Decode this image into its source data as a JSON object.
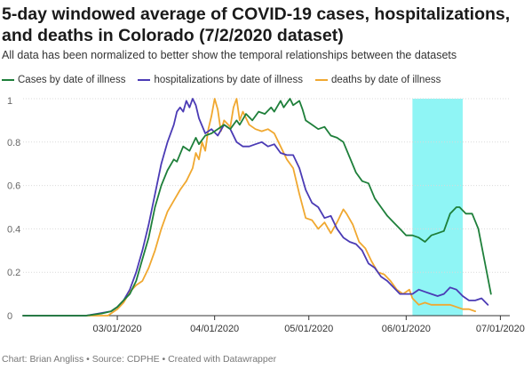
{
  "title": "5-day windowed average of COVID-19 cases, hospitalizations, and deaths in Colorado (7/2/2020 dataset)",
  "subtitle": "All data has been normalized to better show the temporal relationships between the datasets",
  "footer": "Chart: Brian Angliss • Source: CDPHE • Created with Datawrapper",
  "chart_data": {
    "type": "line",
    "title": "5-day windowed average of COVID-19 cases, hospitalizations, and deaths in Colorado (7/2/2020 dataset)",
    "xlim": [
      "2020-01-31",
      "2020-07-04"
    ],
    "ylim": [
      0,
      1
    ],
    "yticks": [
      {
        "value": 0,
        "label": "0"
      },
      {
        "value": 0.2,
        "label": "0.2"
      },
      {
        "value": 0.4,
        "label": "0.4"
      },
      {
        "value": 0.6,
        "label": "0.6"
      },
      {
        "value": 0.8,
        "label": "0.8"
      },
      {
        "value": 1,
        "label": "1"
      }
    ],
    "xticks": [
      {
        "date": "2020-03-01",
        "label": "03/01/2020"
      },
      {
        "date": "2020-04-01",
        "label": "04/01/2020"
      },
      {
        "date": "2020-05-01",
        "label": "05/01/2020"
      },
      {
        "date": "2020-06-01",
        "label": "06/01/2020"
      },
      {
        "date": "2020-07-01",
        "label": "07/01/2020"
      }
    ],
    "highlight_range": [
      "2020-06-03",
      "2020-06-19"
    ],
    "highlight_color": "#8ff5f5",
    "grid": true,
    "legend_position": "top-left",
    "series": [
      {
        "name": "Cases by date of illness",
        "color": "#1e7f3a",
        "points": [
          [
            "2020-01-31",
            0
          ],
          [
            "2020-02-10",
            0
          ],
          [
            "2020-02-20",
            0
          ],
          [
            "2020-02-25",
            0.01
          ],
          [
            "2020-02-28",
            0.02
          ],
          [
            "2020-03-01",
            0.04
          ],
          [
            "2020-03-03",
            0.07
          ],
          [
            "2020-03-05",
            0.1
          ],
          [
            "2020-03-07",
            0.16
          ],
          [
            "2020-03-09",
            0.26
          ],
          [
            "2020-03-11",
            0.36
          ],
          [
            "2020-03-13",
            0.5
          ],
          [
            "2020-03-15",
            0.6
          ],
          [
            "2020-03-17",
            0.67
          ],
          [
            "2020-03-19",
            0.72
          ],
          [
            "2020-03-20",
            0.71
          ],
          [
            "2020-03-22",
            0.78
          ],
          [
            "2020-03-24",
            0.76
          ],
          [
            "2020-03-26",
            0.82
          ],
          [
            "2020-03-27",
            0.79
          ],
          [
            "2020-03-29",
            0.83
          ],
          [
            "2020-03-31",
            0.84
          ],
          [
            "2020-04-02",
            0.86
          ],
          [
            "2020-04-04",
            0.88
          ],
          [
            "2020-04-06",
            0.86
          ],
          [
            "2020-04-08",
            0.9
          ],
          [
            "2020-04-09",
            0.88
          ],
          [
            "2020-04-11",
            0.93
          ],
          [
            "2020-04-13",
            0.9
          ],
          [
            "2020-04-15",
            0.94
          ],
          [
            "2020-04-17",
            0.93
          ],
          [
            "2020-04-19",
            0.96
          ],
          [
            "2020-04-20",
            0.94
          ],
          [
            "2020-04-22",
            0.99
          ],
          [
            "2020-04-23",
            0.96
          ],
          [
            "2020-04-25",
            1
          ],
          [
            "2020-04-26",
            0.97
          ],
          [
            "2020-04-28",
            0.99
          ],
          [
            "2020-04-29",
            0.95
          ],
          [
            "2020-04-30",
            0.9
          ],
          [
            "2020-05-02",
            0.88
          ],
          [
            "2020-05-04",
            0.86
          ],
          [
            "2020-05-06",
            0.87
          ],
          [
            "2020-05-08",
            0.83
          ],
          [
            "2020-05-10",
            0.82
          ],
          [
            "2020-05-12",
            0.8
          ],
          [
            "2020-05-14",
            0.73
          ],
          [
            "2020-05-16",
            0.66
          ],
          [
            "2020-05-18",
            0.62
          ],
          [
            "2020-05-20",
            0.61
          ],
          [
            "2020-05-22",
            0.54
          ],
          [
            "2020-05-24",
            0.5
          ],
          [
            "2020-05-26",
            0.46
          ],
          [
            "2020-05-28",
            0.43
          ],
          [
            "2020-05-30",
            0.4
          ],
          [
            "2020-06-01",
            0.37
          ],
          [
            "2020-06-03",
            0.37
          ],
          [
            "2020-06-05",
            0.36
          ],
          [
            "2020-06-07",
            0.34
          ],
          [
            "2020-06-09",
            0.37
          ],
          [
            "2020-06-11",
            0.38
          ],
          [
            "2020-06-13",
            0.39
          ],
          [
            "2020-06-15",
            0.47
          ],
          [
            "2020-06-17",
            0.5
          ],
          [
            "2020-06-18",
            0.5
          ],
          [
            "2020-06-20",
            0.47
          ],
          [
            "2020-06-22",
            0.47
          ],
          [
            "2020-06-24",
            0.4
          ],
          [
            "2020-06-26",
            0.25
          ],
          [
            "2020-06-28",
            0.1
          ]
        ]
      },
      {
        "name": "hospitalizations by date of illness",
        "color": "#4b3bb5",
        "points": [
          [
            "2020-01-31",
            0
          ],
          [
            "2020-02-10",
            0
          ],
          [
            "2020-02-20",
            0
          ],
          [
            "2020-02-24",
            0.01
          ],
          [
            "2020-02-28",
            0.02
          ],
          [
            "2020-03-01",
            0.04
          ],
          [
            "2020-03-03",
            0.07
          ],
          [
            "2020-03-05",
            0.12
          ],
          [
            "2020-03-07",
            0.2
          ],
          [
            "2020-03-09",
            0.3
          ],
          [
            "2020-03-11",
            0.42
          ],
          [
            "2020-03-13",
            0.56
          ],
          [
            "2020-03-15",
            0.7
          ],
          [
            "2020-03-17",
            0.8
          ],
          [
            "2020-03-19",
            0.88
          ],
          [
            "2020-03-20",
            0.94
          ],
          [
            "2020-03-21",
            0.96
          ],
          [
            "2020-03-22",
            0.94
          ],
          [
            "2020-03-23",
            0.99
          ],
          [
            "2020-03-24",
            0.96
          ],
          [
            "2020-03-25",
            1
          ],
          [
            "2020-03-26",
            0.97
          ],
          [
            "2020-03-27",
            0.91
          ],
          [
            "2020-03-29",
            0.84
          ],
          [
            "2020-03-31",
            0.86
          ],
          [
            "2020-04-02",
            0.83
          ],
          [
            "2020-04-04",
            0.88
          ],
          [
            "2020-04-06",
            0.86
          ],
          [
            "2020-04-08",
            0.8
          ],
          [
            "2020-04-10",
            0.78
          ],
          [
            "2020-04-12",
            0.78
          ],
          [
            "2020-04-14",
            0.79
          ],
          [
            "2020-04-16",
            0.8
          ],
          [
            "2020-04-18",
            0.78
          ],
          [
            "2020-04-20",
            0.79
          ],
          [
            "2020-04-22",
            0.75
          ],
          [
            "2020-04-24",
            0.74
          ],
          [
            "2020-04-26",
            0.74
          ],
          [
            "2020-04-28",
            0.68
          ],
          [
            "2020-04-30",
            0.58
          ],
          [
            "2020-05-02",
            0.52
          ],
          [
            "2020-05-04",
            0.5
          ],
          [
            "2020-05-06",
            0.45
          ],
          [
            "2020-05-08",
            0.46
          ],
          [
            "2020-05-10",
            0.4
          ],
          [
            "2020-05-12",
            0.36
          ],
          [
            "2020-05-14",
            0.34
          ],
          [
            "2020-05-16",
            0.33
          ],
          [
            "2020-05-18",
            0.3
          ],
          [
            "2020-05-20",
            0.24
          ],
          [
            "2020-05-22",
            0.22
          ],
          [
            "2020-05-24",
            0.18
          ],
          [
            "2020-05-26",
            0.16
          ],
          [
            "2020-05-28",
            0.13
          ],
          [
            "2020-05-30",
            0.1
          ],
          [
            "2020-06-01",
            0.1
          ],
          [
            "2020-06-03",
            0.1
          ],
          [
            "2020-06-05",
            0.12
          ],
          [
            "2020-06-07",
            0.11
          ],
          [
            "2020-06-09",
            0.1
          ],
          [
            "2020-06-11",
            0.09
          ],
          [
            "2020-06-13",
            0.1
          ],
          [
            "2020-06-15",
            0.13
          ],
          [
            "2020-06-17",
            0.12
          ],
          [
            "2020-06-19",
            0.09
          ],
          [
            "2020-06-21",
            0.07
          ],
          [
            "2020-06-23",
            0.07
          ],
          [
            "2020-06-25",
            0.08
          ],
          [
            "2020-06-27",
            0.05
          ]
        ]
      },
      {
        "name": "deaths by date of illness",
        "color": "#f0a830",
        "points": [
          [
            "2020-01-31",
            0
          ],
          [
            "2020-02-10",
            0
          ],
          [
            "2020-02-20",
            0
          ],
          [
            "2020-02-27",
            0
          ],
          [
            "2020-03-01",
            0.03
          ],
          [
            "2020-03-03",
            0.06
          ],
          [
            "2020-03-05",
            0.11
          ],
          [
            "2020-03-07",
            0.14
          ],
          [
            "2020-03-09",
            0.16
          ],
          [
            "2020-03-11",
            0.22
          ],
          [
            "2020-03-13",
            0.3
          ],
          [
            "2020-03-15",
            0.4
          ],
          [
            "2020-03-17",
            0.48
          ],
          [
            "2020-03-19",
            0.53
          ],
          [
            "2020-03-21",
            0.58
          ],
          [
            "2020-03-23",
            0.62
          ],
          [
            "2020-03-25",
            0.68
          ],
          [
            "2020-03-26",
            0.75
          ],
          [
            "2020-03-27",
            0.72
          ],
          [
            "2020-03-28",
            0.8
          ],
          [
            "2020-03-29",
            0.76
          ],
          [
            "2020-03-30",
            0.86
          ],
          [
            "2020-03-31",
            0.92
          ],
          [
            "2020-04-01",
            1
          ],
          [
            "2020-04-02",
            0.95
          ],
          [
            "2020-04-03",
            0.85
          ],
          [
            "2020-04-04",
            0.9
          ],
          [
            "2020-04-06",
            0.87
          ],
          [
            "2020-04-07",
            0.96
          ],
          [
            "2020-04-08",
            1
          ],
          [
            "2020-04-09",
            0.9
          ],
          [
            "2020-04-10",
            0.94
          ],
          [
            "2020-04-12",
            0.88
          ],
          [
            "2020-04-14",
            0.86
          ],
          [
            "2020-04-16",
            0.85
          ],
          [
            "2020-04-18",
            0.86
          ],
          [
            "2020-04-20",
            0.84
          ],
          [
            "2020-04-22",
            0.78
          ],
          [
            "2020-04-24",
            0.72
          ],
          [
            "2020-04-26",
            0.68
          ],
          [
            "2020-04-28",
            0.56
          ],
          [
            "2020-04-30",
            0.45
          ],
          [
            "2020-05-02",
            0.44
          ],
          [
            "2020-05-04",
            0.4
          ],
          [
            "2020-05-06",
            0.43
          ],
          [
            "2020-05-08",
            0.38
          ],
          [
            "2020-05-10",
            0.43
          ],
          [
            "2020-05-12",
            0.49
          ],
          [
            "2020-05-13",
            0.47
          ],
          [
            "2020-05-15",
            0.42
          ],
          [
            "2020-05-17",
            0.34
          ],
          [
            "2020-05-19",
            0.31
          ],
          [
            "2020-05-21",
            0.25
          ],
          [
            "2020-05-23",
            0.2
          ],
          [
            "2020-05-25",
            0.19
          ],
          [
            "2020-05-27",
            0.16
          ],
          [
            "2020-05-29",
            0.12
          ],
          [
            "2020-05-31",
            0.1
          ],
          [
            "2020-06-02",
            0.12
          ],
          [
            "2020-06-03",
            0.08
          ],
          [
            "2020-06-05",
            0.05
          ],
          [
            "2020-06-07",
            0.06
          ],
          [
            "2020-06-09",
            0.05
          ],
          [
            "2020-06-11",
            0.05
          ],
          [
            "2020-06-13",
            0.05
          ],
          [
            "2020-06-15",
            0.05
          ],
          [
            "2020-06-17",
            0.04
          ],
          [
            "2020-06-19",
            0.03
          ],
          [
            "2020-06-21",
            0.03
          ],
          [
            "2020-06-23",
            0.02
          ]
        ]
      }
    ]
  }
}
